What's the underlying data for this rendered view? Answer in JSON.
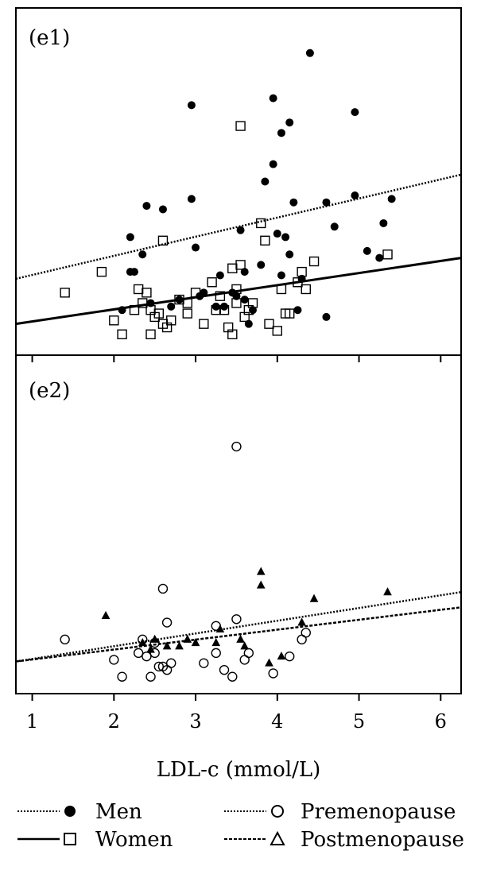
{
  "chart_data": [
    {
      "type": "scatter",
      "panel_label": "(e1)",
      "xlim": [
        0.8,
        6.25
      ],
      "ylim": [
        0,
        10
      ],
      "grid": false,
      "series": [
        {
          "name": "Men",
          "marker": "filled-circle",
          "points": [
            [
              2.1,
              1.3
            ],
            [
              2.2,
              3.4
            ],
            [
              2.2,
              2.4
            ],
            [
              2.25,
              2.4
            ],
            [
              2.35,
              2.9
            ],
            [
              2.4,
              4.3
            ],
            [
              2.45,
              1.5
            ],
            [
              2.6,
              4.2
            ],
            [
              2.7,
              1.4
            ],
            [
              2.8,
              1.6
            ],
            [
              2.95,
              7.2
            ],
            [
              2.95,
              4.5
            ],
            [
              3.0,
              3.1
            ],
            [
              3.05,
              1.7
            ],
            [
              3.1,
              1.8
            ],
            [
              3.25,
              1.4
            ],
            [
              3.3,
              2.3
            ],
            [
              3.35,
              1.4
            ],
            [
              3.45,
              1.8
            ],
            [
              3.5,
              1.7
            ],
            [
              3.55,
              3.6
            ],
            [
              3.6,
              1.6
            ],
            [
              3.6,
              2.4
            ],
            [
              3.65,
              0.9
            ],
            [
              3.7,
              1.3
            ],
            [
              3.8,
              2.6
            ],
            [
              3.85,
              5.0
            ],
            [
              3.95,
              5.5
            ],
            [
              3.95,
              7.4
            ],
            [
              4.0,
              3.5
            ],
            [
              4.05,
              2.3
            ],
            [
              4.05,
              6.4
            ],
            [
              4.1,
              3.4
            ],
            [
              4.15,
              6.7
            ],
            [
              4.15,
              2.9
            ],
            [
              4.2,
              4.4
            ],
            [
              4.25,
              1.3
            ],
            [
              4.3,
              2.2
            ],
            [
              4.4,
              8.7
            ],
            [
              4.6,
              4.4
            ],
            [
              4.6,
              1.1
            ],
            [
              4.7,
              3.7
            ],
            [
              4.95,
              4.6
            ],
            [
              4.95,
              7.0
            ],
            [
              5.1,
              3.0
            ],
            [
              5.25,
              2.8
            ],
            [
              5.3,
              3.8
            ],
            [
              5.4,
              4.5
            ]
          ]
        },
        {
          "name": "Women",
          "marker": "open-square",
          "points": [
            [
              1.4,
              1.8
            ],
            [
              1.85,
              2.4
            ],
            [
              2.0,
              1.0
            ],
            [
              2.1,
              0.6
            ],
            [
              2.25,
              1.3
            ],
            [
              2.3,
              1.9
            ],
            [
              2.35,
              1.5
            ],
            [
              2.4,
              1.8
            ],
            [
              2.45,
              1.3
            ],
            [
              2.45,
              0.6
            ],
            [
              2.5,
              1.1
            ],
            [
              2.55,
              1.2
            ],
            [
              2.6,
              0.9
            ],
            [
              2.6,
              3.3
            ],
            [
              2.65,
              0.8
            ],
            [
              2.7,
              1.0
            ],
            [
              2.8,
              1.6
            ],
            [
              2.9,
              1.5
            ],
            [
              2.9,
              1.2
            ],
            [
              3.0,
              1.8
            ],
            [
              3.1,
              0.9
            ],
            [
              3.2,
              2.1
            ],
            [
              3.25,
              1.3
            ],
            [
              3.3,
              1.7
            ],
            [
              3.35,
              1.3
            ],
            [
              3.4,
              0.8
            ],
            [
              3.45,
              2.5
            ],
            [
              3.45,
              0.6
            ],
            [
              3.5,
              1.9
            ],
            [
              3.5,
              1.5
            ],
            [
              3.55,
              6.6
            ],
            [
              3.55,
              2.6
            ],
            [
              3.6,
              1.1
            ],
            [
              3.65,
              1.3
            ],
            [
              3.7,
              1.5
            ],
            [
              3.8,
              3.8
            ],
            [
              3.85,
              3.3
            ],
            [
              3.9,
              0.9
            ],
            [
              4.0,
              0.7
            ],
            [
              4.05,
              1.9
            ],
            [
              4.1,
              1.2
            ],
            [
              4.15,
              1.2
            ],
            [
              4.25,
              2.1
            ],
            [
              4.3,
              2.4
            ],
            [
              4.35,
              1.9
            ],
            [
              4.45,
              2.7
            ],
            [
              5.35,
              2.9
            ]
          ]
        }
      ],
      "fit_lines": [
        {
          "name": "Men",
          "style": "dotted",
          "x": [
            0.8,
            6.25
          ],
          "y": [
            2.2,
            5.2
          ]
        },
        {
          "name": "Women",
          "style": "solid",
          "x": [
            0.8,
            6.25
          ],
          "y": [
            0.9,
            2.8
          ]
        }
      ]
    },
    {
      "type": "scatter",
      "panel_label": "(e2)",
      "xlim": [
        0.8,
        6.25
      ],
      "ylim": [
        0,
        10
      ],
      "grid": false,
      "xticks": [
        1,
        2,
        3,
        4,
        5,
        6
      ],
      "xlabel": "LDL-c (mmol/L)",
      "series": [
        {
          "name": "Premenopause",
          "marker": "open-circle",
          "points": [
            [
              1.4,
              1.6
            ],
            [
              2.0,
              1.0
            ],
            [
              2.1,
              0.5
            ],
            [
              2.3,
              1.2
            ],
            [
              2.35,
              1.6
            ],
            [
              2.4,
              1.1
            ],
            [
              2.45,
              0.5
            ],
            [
              2.5,
              1.2
            ],
            [
              2.5,
              1.5
            ],
            [
              2.55,
              0.8
            ],
            [
              2.6,
              0.8
            ],
            [
              2.6,
              3.1
            ],
            [
              2.65,
              0.7
            ],
            [
              2.65,
              2.1
            ],
            [
              2.7,
              0.9
            ],
            [
              3.1,
              0.9
            ],
            [
              3.25,
              1.2
            ],
            [
              3.25,
              2.0
            ],
            [
              3.35,
              0.7
            ],
            [
              3.45,
              0.5
            ],
            [
              3.5,
              2.2
            ],
            [
              3.5,
              7.3
            ],
            [
              3.6,
              1.0
            ],
            [
              3.65,
              1.2
            ],
            [
              3.95,
              0.6
            ],
            [
              4.15,
              1.1
            ],
            [
              4.3,
              1.6
            ],
            [
              4.35,
              1.8
            ]
          ]
        },
        {
          "name": "Postmenopause",
          "marker": "open-triangle",
          "points": [
            [
              1.9,
              2.3
            ],
            [
              2.35,
              1.5
            ],
            [
              2.45,
              1.3
            ],
            [
              2.5,
              1.6
            ],
            [
              2.65,
              1.4
            ],
            [
              2.8,
              1.4
            ],
            [
              2.9,
              1.6
            ],
            [
              3.0,
              1.5
            ],
            [
              3.25,
              1.5
            ],
            [
              3.3,
              1.9
            ],
            [
              3.55,
              1.6
            ],
            [
              3.6,
              1.4
            ],
            [
              3.8,
              3.6
            ],
            [
              3.8,
              3.2
            ],
            [
              3.9,
              0.9
            ],
            [
              4.05,
              1.1
            ],
            [
              4.3,
              2.1
            ],
            [
              4.45,
              2.8
            ],
            [
              5.35,
              3.0
            ]
          ]
        }
      ],
      "fit_lines": [
        {
          "name": "Premenopause",
          "style": "dotted",
          "x": [
            0.8,
            6.25
          ],
          "y": [
            0.95,
            3.0
          ]
        },
        {
          "name": "Postmenopause",
          "style": "dashed",
          "x": [
            0.8,
            6.25
          ],
          "y": [
            0.95,
            2.55
          ]
        }
      ]
    }
  ],
  "legend": {
    "placement": "bottom",
    "items": [
      {
        "label": "Men",
        "line": "dotted",
        "marker": "filled-circle"
      },
      {
        "label": "Premenopause",
        "line": "dotted",
        "marker": "open-circle"
      },
      {
        "label": "Women",
        "line": "solid",
        "marker": "open-square"
      },
      {
        "label": "Postmenopause",
        "line": "dashed",
        "marker": "open-triangle"
      }
    ]
  },
  "colors": {
    "ink": "#000000",
    "background": "#ffffff"
  }
}
